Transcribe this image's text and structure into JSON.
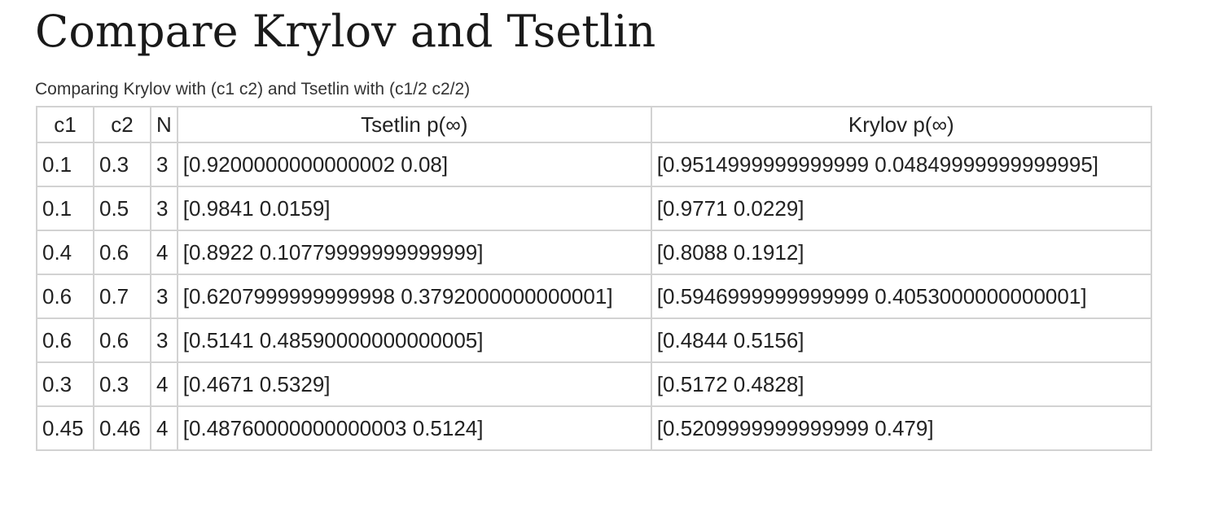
{
  "page": {
    "title": "Compare Krylov and Tsetlin",
    "caption": "Comparing Krylov with (c1 c2) and Tsetlin with (c1/2 c2/2)"
  },
  "table": {
    "headers": [
      "c1",
      "c2",
      "N",
      "Tsetlin p(∞)",
      "Krylov p(∞)"
    ],
    "rows": [
      [
        "0.1",
        "0.3",
        "3",
        "[0.9200000000000002 0.08]",
        "[0.9514999999999999 0.04849999999999995]"
      ],
      [
        "0.1",
        "0.5",
        "3",
        "[0.9841 0.0159]",
        "[0.9771 0.0229]"
      ],
      [
        "0.4",
        "0.6",
        "4",
        "[0.8922 0.10779999999999999]",
        "[0.8088 0.1912]"
      ],
      [
        "0.6",
        "0.7",
        "3",
        "[0.6207999999999998 0.3792000000000001]",
        "[0.5946999999999999 0.4053000000000001]"
      ],
      [
        "0.6",
        "0.6",
        "3",
        "[0.5141 0.48590000000000005]",
        "[0.4844 0.5156]"
      ],
      [
        "0.3",
        "0.3",
        "4",
        "[0.4671 0.5329]",
        "[0.5172 0.4828]"
      ],
      [
        "0.45",
        "0.46",
        "4",
        "[0.48760000000000003 0.5124]",
        "[0.5209999999999999 0.479]"
      ]
    ]
  }
}
